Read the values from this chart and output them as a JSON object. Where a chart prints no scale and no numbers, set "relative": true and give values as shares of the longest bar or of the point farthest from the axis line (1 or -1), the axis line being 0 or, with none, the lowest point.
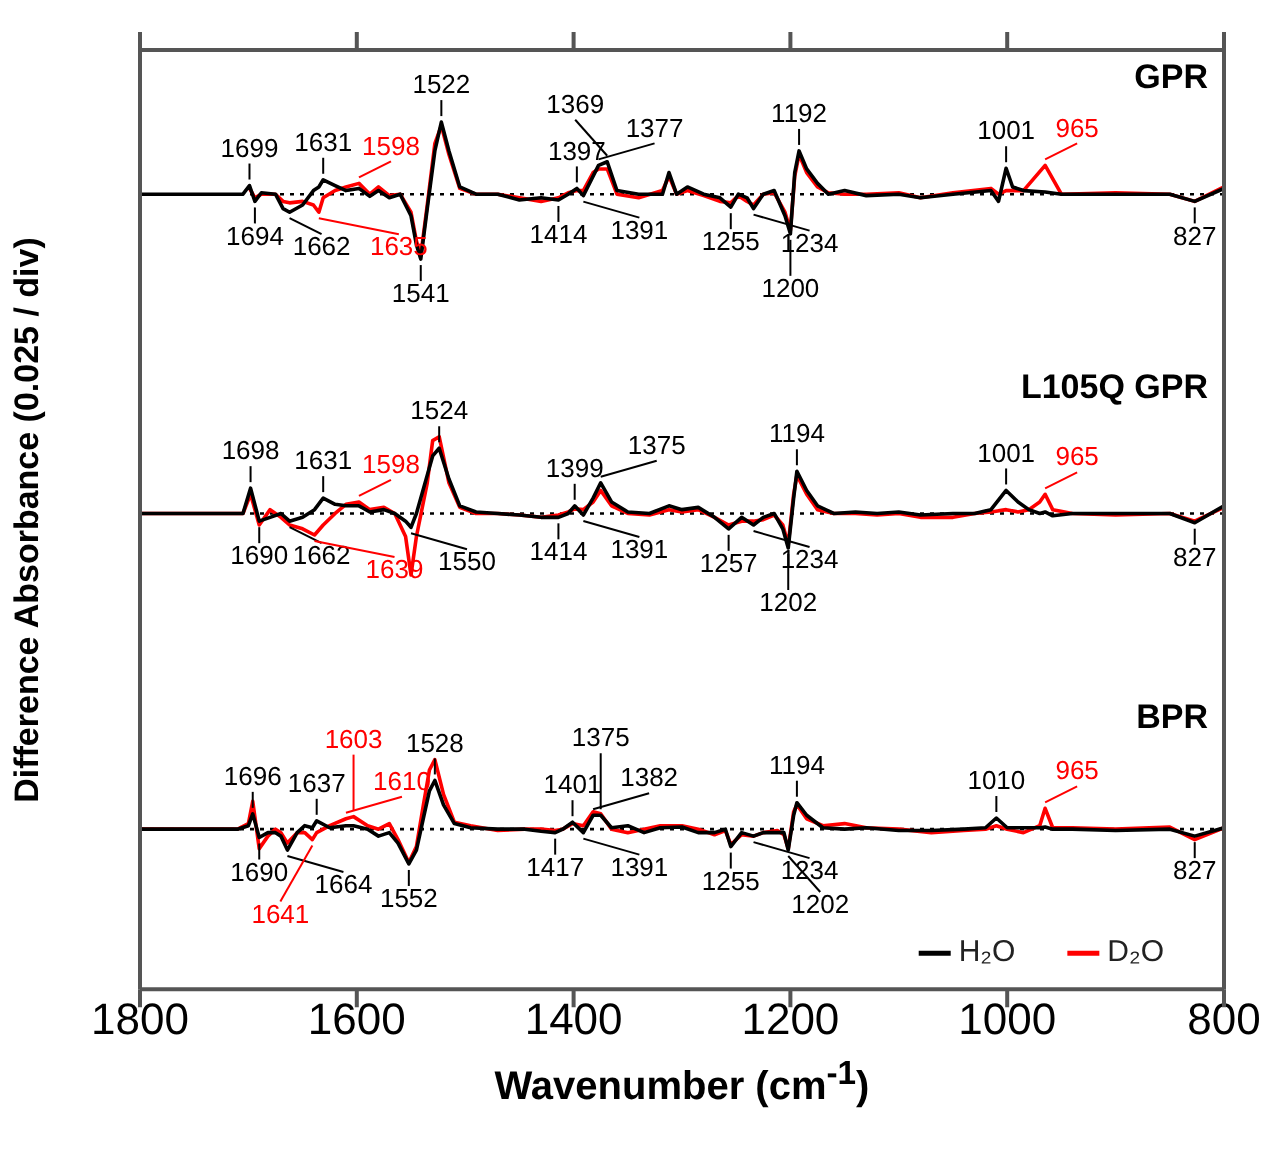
{
  "chart_data": [
    {
      "type": "line",
      "title": "GPR",
      "relative": true,
      "xlim": [
        1800,
        800
      ],
      "xticks": [
        1800,
        1600,
        1400,
        1200,
        1000,
        800
      ],
      "tick_labels": false,
      "grid": false,
      "marker": "none",
      "line_style": "solid",
      "x": [
        1800,
        1720,
        1705,
        1699,
        1694,
        1688,
        1675,
        1668,
        1662,
        1650,
        1640,
        1635,
        1631,
        1620,
        1610,
        1598,
        1588,
        1580,
        1570,
        1560,
        1550,
        1545,
        1541,
        1535,
        1528,
        1522,
        1515,
        1505,
        1490,
        1470,
        1450,
        1430,
        1414,
        1405,
        1397,
        1391,
        1382,
        1377,
        1369,
        1360,
        1340,
        1318,
        1312,
        1305,
        1295,
        1280,
        1265,
        1255,
        1248,
        1240,
        1234,
        1225,
        1215,
        1205,
        1200,
        1196,
        1192,
        1185,
        1175,
        1165,
        1150,
        1130,
        1100,
        1080,
        1050,
        1015,
        1008,
        1001,
        995,
        985,
        965,
        950,
        900,
        850,
        827,
        800
      ],
      "series": [
        {
          "color": "#000000",
          "values": [
            0,
            0,
            0,
            0.12,
            -0.1,
            0.02,
            0,
            -0.2,
            -0.25,
            -0.15,
            0.05,
            0.1,
            0.2,
            0.12,
            0.05,
            0.08,
            -0.03,
            0.05,
            -0.05,
            0,
            -0.3,
            -0.7,
            -0.9,
            -0.2,
            0.6,
            1,
            0.6,
            0.1,
            0,
            0,
            -0.08,
            -0.05,
            -0.08,
            0,
            0.08,
            -0.02,
            0.25,
            0.4,
            0.45,
            0.05,
            0,
            0,
            0.3,
            0,
            0.1,
            0,
            -0.05,
            -0.18,
            0,
            -0.05,
            -0.2,
            0,
            0.05,
            -0.3,
            -0.55,
            0.3,
            0.6,
            0.35,
            0.15,
            0,
            0.05,
            -0.02,
            0,
            -0.05,
            0,
            0.05,
            -0.1,
            0.36,
            0.1,
            0.05,
            0.03,
            0,
            0,
            0,
            -0.1,
            0.08
          ]
        },
        {
          "color": "#ff0000",
          "values": [
            null,
            null,
            null,
            0.08,
            -0.05,
            0,
            0,
            -0.1,
            -0.12,
            -0.1,
            -0.15,
            -0.25,
            -0.05,
            0.05,
            0.1,
            0.15,
            0,
            0.1,
            -0.02,
            0,
            -0.25,
            -0.65,
            -0.85,
            -0.15,
            0.7,
            0.95,
            0.55,
            0.08,
            0,
            0,
            -0.05,
            -0.1,
            -0.05,
            0.02,
            0.05,
            0.05,
            0.3,
            0.35,
            0.35,
            0,
            -0.05,
            0.05,
            0.25,
            0,
            0.05,
            -0.02,
            -0.1,
            -0.12,
            -0.02,
            -0.1,
            -0.15,
            0,
            0.02,
            -0.25,
            -0.5,
            0.25,
            0.55,
            0.3,
            0.1,
            0.02,
            0,
            0,
            0.02,
            -0.05,
            0.02,
            0.08,
            0,
            0.05,
            0.05,
            0.05,
            0.4,
            0,
            0.02,
            0,
            -0.1,
            0.1
          ]
        }
      ],
      "ref_lines": [
        {
          "axis": "y",
          "value": 0,
          "color": "#000000",
          "line_style": "dotted"
        }
      ],
      "annotations": [
        {
          "text": "1699",
          "x": 1699,
          "y": 0.12
        },
        {
          "text": "1694",
          "x": 1694,
          "y": -0.1
        },
        {
          "text": "1662",
          "x": 1662,
          "y": -0.25
        },
        {
          "text": "1631",
          "x": 1631,
          "y": 0.2
        },
        {
          "text": "1598",
          "x": 1598,
          "y": 0.15
        },
        {
          "text": "1635",
          "x": 1635,
          "y": -0.25
        },
        {
          "text": "1522",
          "x": 1522,
          "y": 1
        },
        {
          "text": "1541",
          "x": 1541,
          "y": -0.9
        },
        {
          "text": "1397",
          "x": 1397,
          "y": 0.08
        },
        {
          "text": "1414",
          "x": 1414,
          "y": -0.08
        },
        {
          "text": "1377",
          "x": 1377,
          "y": 0.4
        },
        {
          "text": "1391",
          "x": 1391,
          "y": -0.02
        },
        {
          "text": "1369",
          "x": 1369,
          "y": 0.45
        },
        {
          "text": "1255",
          "x": 1255,
          "y": -0.18
        },
        {
          "text": "1234",
          "x": 1234,
          "y": -0.2
        },
        {
          "text": "1192",
          "x": 1192,
          "y": 0.6
        },
        {
          "text": "1200",
          "x": 1200,
          "y": -0.55
        },
        {
          "text": "1001",
          "x": 1001,
          "y": 0.36
        },
        {
          "text": "965",
          "x": 965,
          "y": 0.4
        },
        {
          "text": "827",
          "x": 827,
          "y": -0.1
        }
      ]
    },
    {
      "type": "line",
      "title": "L105Q GPR",
      "relative": true,
      "xlim": [
        1800,
        800
      ],
      "tick_labels": false,
      "grid": false,
      "marker": "none",
      "line_style": "solid",
      "ylabel": "Difference Absorbance (0.025 / div)",
      "x": [
        1800,
        1720,
        1705,
        1698,
        1690,
        1680,
        1670,
        1662,
        1650,
        1639,
        1631,
        1620,
        1610,
        1598,
        1588,
        1575,
        1565,
        1555,
        1550,
        1545,
        1535,
        1530,
        1524,
        1515,
        1505,
        1490,
        1470,
        1450,
        1430,
        1414,
        1405,
        1399,
        1391,
        1382,
        1375,
        1365,
        1350,
        1330,
        1312,
        1300,
        1285,
        1270,
        1257,
        1245,
        1234,
        1225,
        1215,
        1207,
        1202,
        1197,
        1194,
        1185,
        1175,
        1160,
        1140,
        1120,
        1100,
        1080,
        1050,
        1030,
        1015,
        1001,
        990,
        980,
        970,
        965,
        958,
        940,
        900,
        850,
        827,
        800
      ],
      "series": [
        {
          "color": "#000000",
          "values": [
            0,
            0,
            0,
            0.33,
            -0.1,
            -0.05,
            0,
            -0.1,
            -0.05,
            0.05,
            0.2,
            0.12,
            0.1,
            0.1,
            0.02,
            0.05,
            0,
            -0.1,
            -0.18,
            0,
            0.5,
            0.75,
            0.85,
            0.45,
            0.1,
            0.02,
            0,
            -0.02,
            -0.05,
            -0.05,
            0,
            0.1,
            -0.02,
            0.2,
            0.4,
            0.15,
            0.02,
            0,
            0.1,
            0.05,
            0.08,
            -0.05,
            -0.2,
            -0.05,
            -0.15,
            -0.05,
            0,
            -0.2,
            -0.45,
            0.2,
            0.55,
            0.3,
            0.1,
            0,
            0.02,
            0,
            0.02,
            -0.02,
            0,
            0,
            0.05,
            0.3,
            0.15,
            0.05,
            0,
            0.02,
            -0.03,
            0,
            0,
            0,
            -0.12,
            0.1
          ]
        },
        {
          "color": "#ff0000",
          "values": [
            0,
            0,
            0,
            0.25,
            -0.15,
            0.05,
            -0.05,
            -0.15,
            -0.2,
            -0.28,
            -0.15,
            0,
            0.12,
            0.15,
            0.05,
            0.08,
            0,
            -0.3,
            -0.8,
            -0.3,
            0.4,
            0.95,
            1,
            0.4,
            0.08,
            0,
            0,
            -0.02,
            -0.05,
            -0.02,
            0.02,
            0.06,
            0.05,
            0.15,
            0.3,
            0.1,
            0,
            -0.02,
            0.05,
            0.02,
            0.05,
            -0.05,
            -0.15,
            -0.1,
            -0.1,
            -0.08,
            -0.02,
            -0.15,
            -0.4,
            0.25,
            0.5,
            0.25,
            0.05,
            0,
            0,
            -0.02,
            0,
            -0.05,
            -0.05,
            0,
            0.02,
            0.05,
            0.02,
            0.05,
            0.15,
            0.25,
            0.05,
            0,
            -0.02,
            0,
            -0.1,
            0.08
          ]
        }
      ],
      "ref_lines": [
        {
          "axis": "y",
          "value": 0,
          "color": "#000000",
          "line_style": "dotted"
        }
      ],
      "annotations": [
        {
          "text": "1698",
          "x": 1698,
          "y": 0.33
        },
        {
          "text": "1690",
          "x": 1690,
          "y": -0.1
        },
        {
          "text": "1662",
          "x": 1662,
          "y": -0.1
        },
        {
          "text": "1631",
          "x": 1631,
          "y": 0.2
        },
        {
          "text": "1598",
          "x": 1598,
          "y": 0.15
        },
        {
          "text": "1639",
          "x": 1639,
          "y": -0.28
        },
        {
          "text": "1524",
          "x": 1524,
          "y": 0.85
        },
        {
          "text": "1550",
          "x": 1550,
          "y": -0.18
        },
        {
          "text": "1399",
          "x": 1399,
          "y": 0.1
        },
        {
          "text": "1414",
          "x": 1414,
          "y": -0.05
        },
        {
          "text": "1391",
          "x": 1391,
          "y": -0.02
        },
        {
          "text": "1375",
          "x": 1375,
          "y": 0.4
        },
        {
          "text": "1257",
          "x": 1257,
          "y": -0.2
        },
        {
          "text": "1234",
          "x": 1234,
          "y": -0.15
        },
        {
          "text": "1194",
          "x": 1194,
          "y": 0.55
        },
        {
          "text": "1202",
          "x": 1202,
          "y": -0.45
        },
        {
          "text": "1001",
          "x": 1001,
          "y": 0.3
        },
        {
          "text": "965",
          "x": 965,
          "y": 0.25
        },
        {
          "text": "827",
          "x": 827,
          "y": -0.12
        }
      ]
    },
    {
      "type": "line",
      "title": "BPR",
      "relative": true,
      "xlim": [
        1800,
        800
      ],
      "xticks": [
        1800,
        1600,
        1400,
        1200,
        1000,
        800
      ],
      "tick_labels": "x",
      "xlabel": "Wavenumber (cm$^{-1}$)",
      "grid": false,
      "marker": "none",
      "line_style": "solid",
      "legend": "bottom right",
      "x": [
        1800,
        1740,
        1710,
        1700,
        1696,
        1690,
        1682,
        1675,
        1670,
        1664,
        1655,
        1648,
        1641,
        1637,
        1625,
        1610,
        1603,
        1590,
        1580,
        1570,
        1562,
        1552,
        1545,
        1538,
        1533,
        1528,
        1520,
        1510,
        1495,
        1470,
        1445,
        1430,
        1417,
        1410,
        1401,
        1391,
        1382,
        1375,
        1365,
        1350,
        1335,
        1320,
        1300,
        1285,
        1270,
        1260,
        1255,
        1245,
        1234,
        1225,
        1212,
        1206,
        1202,
        1197,
        1194,
        1185,
        1170,
        1150,
        1130,
        1100,
        1070,
        1040,
        1020,
        1010,
        1000,
        985,
        970,
        965,
        958,
        940,
        900,
        850,
        827,
        800
      ],
      "series": [
        {
          "name": "H₂O",
          "color": "#000000",
          "values": [
            0,
            0,
            0,
            0.05,
            0.22,
            -0.12,
            -0.05,
            -0.05,
            -0.1,
            -0.3,
            -0.05,
            0.05,
            0.02,
            0.12,
            0.02,
            0.05,
            0.05,
            0,
            -0.1,
            -0.05,
            -0.2,
            -0.5,
            -0.3,
            0.2,
            0.55,
            0.7,
            0.35,
            0.08,
            0.02,
            0,
            0,
            -0.03,
            -0.05,
            0,
            0.1,
            -0.05,
            0.2,
            0.2,
            0.02,
            0.05,
            -0.05,
            0.02,
            0.03,
            -0.05,
            -0.05,
            0,
            -0.25,
            -0.05,
            -0.1,
            -0.05,
            -0.05,
            -0.05,
            -0.3,
            0.2,
            0.38,
            0.2,
            0.02,
            0,
            0.02,
            -0.02,
            -0.02,
            0,
            0.02,
            0.16,
            0.02,
            0.02,
            0.02,
            0.03,
            0,
            0,
            -0.02,
            0,
            -0.1,
            0.02
          ]
        },
        {
          "name": "D₂O",
          "color": "#ff0000",
          "values": [
            0,
            0,
            0,
            0.08,
            0.4,
            -0.28,
            -0.1,
            0,
            -0.05,
            -0.2,
            -0.05,
            -0.05,
            -0.15,
            -0.05,
            0.05,
            0.15,
            0.18,
            0.05,
            0,
            0.08,
            -0.15,
            -0.48,
            -0.25,
            0.4,
            0.85,
            1,
            0.5,
            0.1,
            0.05,
            -0.02,
            0,
            0,
            -0.02,
            0,
            0.08,
            0.05,
            0.25,
            0.22,
            0,
            -0.05,
            0,
            0.05,
            0.05,
            0,
            -0.08,
            -0.02,
            -0.22,
            -0.08,
            -0.1,
            -0.05,
            -0.02,
            -0.08,
            -0.28,
            0.25,
            0.35,
            0.15,
            0.05,
            0.08,
            0.02,
            0,
            -0.05,
            -0.02,
            0,
            0.05,
            0,
            -0.05,
            0.05,
            0.3,
            0.02,
            0.02,
            0,
            0.03,
            -0.15,
            0.02
          ]
        }
      ],
      "ref_lines": [
        {
          "axis": "y",
          "value": 0,
          "color": "#000000",
          "line_style": "dotted"
        }
      ],
      "annotations": [
        {
          "text": "1696",
          "x": 1696,
          "y": 0.22
        },
        {
          "text": "1690",
          "x": 1690,
          "y": -0.12
        },
        {
          "text": "1664",
          "x": 1664,
          "y": -0.3
        },
        {
          "text": "1637",
          "x": 1637,
          "y": 0.12
        },
        {
          "text": "1610",
          "x": 1610,
          "y": 0.15
        },
        {
          "text": "1603",
          "x": 1603,
          "y": 0.18
        },
        {
          "text": "1641",
          "x": 1641,
          "y": -0.15
        },
        {
          "text": "1528",
          "x": 1528,
          "y": 0.7
        },
        {
          "text": "1552",
          "x": 1552,
          "y": -0.5
        },
        {
          "text": "1401",
          "x": 1401,
          "y": 0.1
        },
        {
          "text": "1417",
          "x": 1417,
          "y": -0.05
        },
        {
          "text": "1391",
          "x": 1391,
          "y": -0.05
        },
        {
          "text": "1382",
          "x": 1382,
          "y": 0.2
        },
        {
          "text": "1375",
          "x": 1375,
          "y": 0.2
        },
        {
          "text": "1255",
          "x": 1255,
          "y": -0.25
        },
        {
          "text": "1234",
          "x": 1234,
          "y": -0.1
        },
        {
          "text": "1194",
          "x": 1194,
          "y": 0.38
        },
        {
          "text": "1202",
          "x": 1202,
          "y": -0.3
        },
        {
          "text": "1010",
          "x": 1010,
          "y": 0.16
        },
        {
          "text": "965",
          "x": 965,
          "y": 0.3
        },
        {
          "text": "827",
          "x": 827,
          "y": -0.1
        }
      ]
    }
  ]
}
